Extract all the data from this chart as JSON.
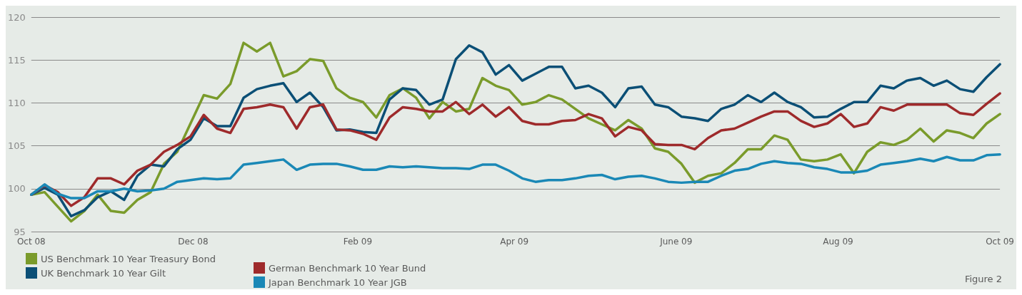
{
  "chart_data": {
    "type": "line",
    "x": [
      "2008-10-01",
      "2008-10-06",
      "2008-10-11",
      "2008-10-16",
      "2008-10-21",
      "2008-10-26",
      "2008-10-31",
      "2008-11-05",
      "2008-11-10",
      "2008-11-15",
      "2008-11-20",
      "2008-11-25",
      "2008-11-30",
      "2008-12-05",
      "2008-12-10",
      "2008-12-15",
      "2008-12-20",
      "2008-12-25",
      "2008-12-30",
      "2009-01-04",
      "2009-01-09",
      "2009-01-14",
      "2009-01-19",
      "2009-01-24",
      "2009-01-29",
      "2009-02-03",
      "2009-02-08",
      "2009-02-13",
      "2009-02-18",
      "2009-02-23",
      "2009-02-28",
      "2009-03-05",
      "2009-03-10",
      "2009-03-15",
      "2009-03-20",
      "2009-03-25",
      "2009-03-30",
      "2009-04-04",
      "2009-04-09",
      "2009-04-14",
      "2009-04-19",
      "2009-04-24",
      "2009-04-29",
      "2009-05-04",
      "2009-05-09",
      "2009-05-14",
      "2009-05-19",
      "2009-05-24",
      "2009-05-29",
      "2009-06-03",
      "2009-06-08",
      "2009-06-13",
      "2009-06-18",
      "2009-06-23",
      "2009-06-28",
      "2009-07-03",
      "2009-07-08",
      "2009-07-13",
      "2009-07-18",
      "2009-07-23",
      "2009-07-28",
      "2009-08-02",
      "2009-08-07",
      "2009-08-12",
      "2009-08-17",
      "2009-08-22",
      "2009-08-27",
      "2009-09-01",
      "2009-09-06",
      "2009-09-11",
      "2009-09-16",
      "2009-09-21",
      "2009-09-26",
      "2009-10-01"
    ],
    "series": [
      {
        "name": "US Benchmark 10 Year Treasury Bond",
        "color": "#7a9b2b",
        "values": [
          99.3,
          99.6,
          97.9,
          96.2,
          97.4,
          99.3,
          97.4,
          97.2,
          98.7,
          99.6,
          102.9,
          104.3,
          107.6,
          110.9,
          110.5,
          112.2,
          117.0,
          116.0,
          117.0,
          113.1,
          113.7,
          115.1,
          114.9,
          111.7,
          110.6,
          110.1,
          108.3,
          110.9,
          111.7,
          110.6,
          108.2,
          110.1,
          109.0,
          109.3,
          112.9,
          112.0,
          111.5,
          109.8,
          110.1,
          110.9,
          110.4,
          109.3,
          108.2,
          107.5,
          106.8,
          108.0,
          107.0,
          104.7,
          104.3,
          102.9,
          100.7,
          101.5,
          101.8,
          103.0,
          104.6,
          104.6,
          106.2,
          105.7,
          103.4,
          103.2,
          103.4,
          104.0,
          101.8,
          104.3,
          105.4,
          105.1,
          105.7,
          107.0,
          105.5,
          106.8,
          106.5,
          105.9,
          107.6,
          108.7
        ]
      },
      {
        "name": "UK Benchmark 10 Year Gilt",
        "color": "#0b4f76",
        "values": [
          99.3,
          100.1,
          99.3,
          96.8,
          97.5,
          99.0,
          99.7,
          98.7,
          101.5,
          102.8,
          102.6,
          104.6,
          105.7,
          108.2,
          107.3,
          107.3,
          110.6,
          111.6,
          112.0,
          112.3,
          110.1,
          111.2,
          109.5,
          106.8,
          106.9,
          106.6,
          106.5,
          110.4,
          111.7,
          111.5,
          109.8,
          110.4,
          115.1,
          116.7,
          115.9,
          113.3,
          114.4,
          112.6,
          113.4,
          114.2,
          114.2,
          111.7,
          112.0,
          111.2,
          109.5,
          111.7,
          111.9,
          109.8,
          109.5,
          108.4,
          108.2,
          107.9,
          109.3,
          109.8,
          110.9,
          110.1,
          111.2,
          110.1,
          109.5,
          108.3,
          108.4,
          109.3,
          110.1,
          110.1,
          112.0,
          111.7,
          112.6,
          112.9,
          112.0,
          112.6,
          111.6,
          111.3,
          113.0,
          114.5
        ]
      },
      {
        "name": "German Benchmark 10 Year Bund",
        "color": "#9e2a2b",
        "values": [
          99.3,
          100.4,
          99.6,
          98.0,
          99.0,
          101.2,
          101.2,
          100.5,
          102.1,
          102.8,
          104.3,
          105.1,
          106.1,
          108.6,
          107.0,
          106.5,
          109.3,
          109.5,
          109.8,
          109.5,
          107.0,
          109.5,
          109.8,
          106.9,
          106.8,
          106.4,
          105.7,
          108.3,
          109.5,
          109.3,
          109.0,
          109.0,
          110.1,
          108.7,
          109.8,
          108.4,
          109.5,
          107.9,
          107.5,
          107.5,
          107.9,
          108.0,
          108.7,
          108.2,
          106.1,
          107.2,
          106.8,
          105.2,
          105.1,
          105.1,
          104.6,
          105.9,
          106.8,
          107.0,
          107.7,
          108.4,
          109.0,
          109.0,
          107.9,
          107.2,
          107.6,
          108.7,
          107.2,
          107.6,
          109.5,
          109.1,
          109.8,
          109.8,
          109.8,
          109.8,
          108.8,
          108.6,
          109.9,
          111.1
        ]
      },
      {
        "name": "Japan Benchmark 10 Year JGB",
        "color": "#1a88b6",
        "values": [
          99.3,
          100.5,
          99.4,
          98.9,
          98.9,
          99.7,
          99.7,
          100.0,
          99.7,
          99.8,
          100.0,
          100.8,
          101.0,
          101.2,
          101.1,
          101.2,
          102.8,
          103.0,
          103.2,
          103.4,
          102.2,
          102.8,
          102.9,
          102.9,
          102.6,
          102.2,
          102.2,
          102.6,
          102.5,
          102.6,
          102.5,
          102.4,
          102.4,
          102.3,
          102.8,
          102.8,
          102.1,
          101.2,
          100.8,
          101.0,
          101.0,
          101.2,
          101.5,
          101.6,
          101.1,
          101.4,
          101.5,
          101.2,
          100.8,
          100.7,
          100.8,
          100.8,
          101.5,
          102.1,
          102.3,
          102.9,
          103.2,
          103.0,
          102.9,
          102.5,
          102.3,
          101.9,
          101.9,
          102.1,
          102.8,
          103.0,
          103.2,
          103.5,
          103.2,
          103.7,
          103.3,
          103.3,
          103.9,
          104.0
        ]
      }
    ],
    "xlim": [
      "2008-10-01",
      "2009-10-01"
    ],
    "xticks": [
      {
        "value": "2008-10-01",
        "label": "Oct 08"
      },
      {
        "value": "2008-12-01",
        "label": "Dec 08"
      },
      {
        "value": "2009-02-01",
        "label": "Feb 09"
      },
      {
        "value": "2009-04-01",
        "label": "Apr 09"
      },
      {
        "value": "2009-06-01",
        "label": "June 09"
      },
      {
        "value": "2009-08-01",
        "label": "Aug 09"
      },
      {
        "value": "2009-10-01",
        "label": "Oct 09"
      }
    ],
    "ylim": [
      95,
      120
    ],
    "yticks": [
      95,
      100,
      105,
      110,
      115,
      120
    ],
    "grid": "y",
    "legend": "bottom left",
    "marker": "none",
    "line_style": "solid",
    "annotations": [
      "Figure 2"
    ]
  }
}
